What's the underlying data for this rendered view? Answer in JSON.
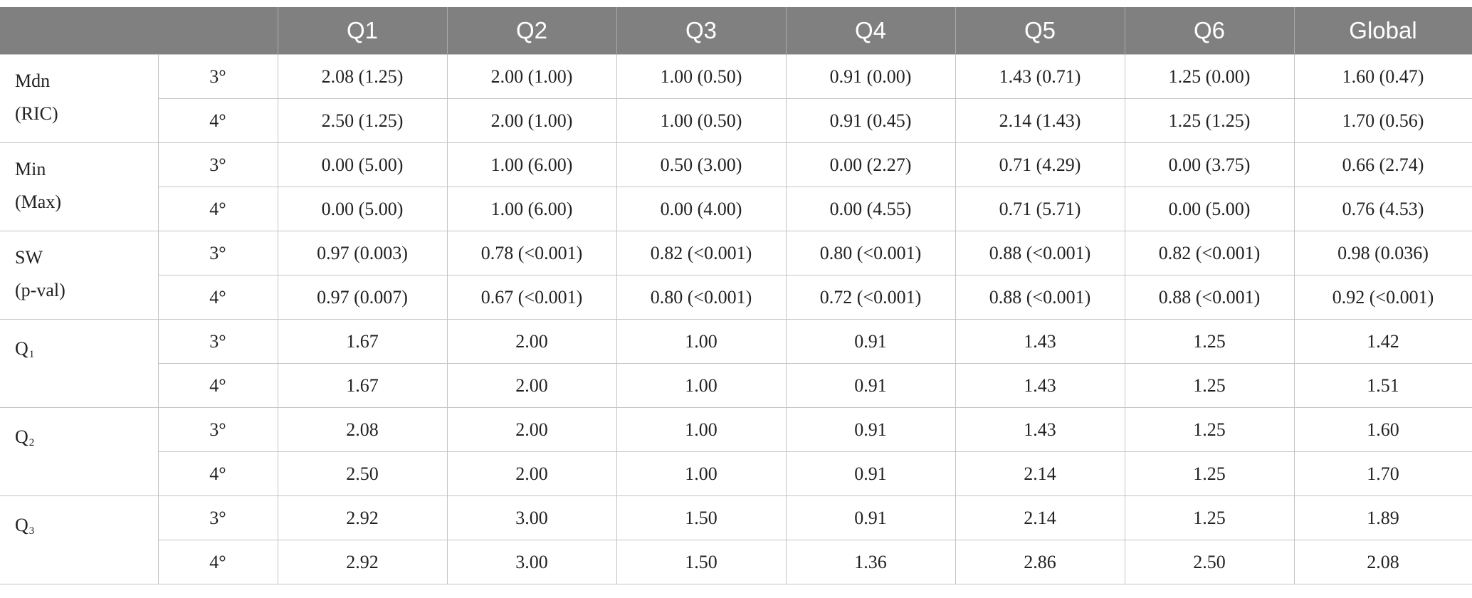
{
  "columns": {
    "empty": "",
    "q1": "Q1",
    "q2": "Q2",
    "q3": "Q3",
    "q4": "Q4",
    "q5": "Q5",
    "q6": "Q6",
    "global": "Global"
  },
  "groups": [
    {
      "label_main": "Mdn",
      "label_sub": "(RIC)",
      "rows": [
        {
          "grade": "3°",
          "values": [
            "2.08 (1.25)",
            "2.00 (1.00)",
            "1.00 (0.50)",
            "0.91 (0.00)",
            "1.43 (0.71)",
            "1.25 (0.00)",
            "1.60 (0.47)"
          ]
        },
        {
          "grade": "4°",
          "values": [
            "2.50 (1.25)",
            "2.00 (1.00)",
            "1.00 (0.50)",
            "0.91 (0.45)",
            "2.14 (1.43)",
            "1.25 (1.25)",
            "1.70 (0.56)"
          ]
        }
      ]
    },
    {
      "label_main": "Min",
      "label_sub": "(Max)",
      "rows": [
        {
          "grade": "3°",
          "values": [
            "0.00 (5.00)",
            "1.00 (6.00)",
            "0.50 (3.00)",
            "0.00 (2.27)",
            "0.71 (4.29)",
            "0.00 (3.75)",
            "0.66 (2.74)"
          ]
        },
        {
          "grade": "4°",
          "values": [
            "0.00 (5.00)",
            "1.00 (6.00)",
            "0.00 (4.00)",
            "0.00 (4.55)",
            "0.71 (5.71)",
            "0.00 (5.00)",
            "0.76 (4.53)"
          ]
        }
      ]
    },
    {
      "label_main": "SW",
      "label_sub": "(p-val)",
      "rows": [
        {
          "grade": "3°",
          "values": [
            "0.97 (0.003)",
            "0.78 (<0.001)",
            "0.82 (<0.001)",
            "0.80 (<0.001)",
            "0.88 (<0.001)",
            "0.82 (<0.001)",
            "0.98 (0.036)"
          ]
        },
        {
          "grade": "4°",
          "values": [
            "0.97 (0.007)",
            "0.67 (<0.001)",
            "0.80 (<0.001)",
            "0.72 (<0.001)",
            "0.88 (<0.001)",
            "0.88 (<0.001)",
            "0.92 (<0.001)"
          ]
        }
      ]
    },
    {
      "label_main": "Q",
      "label_subscript": "1",
      "rows": [
        {
          "grade": "3°",
          "values": [
            "1.67",
            "2.00",
            "1.00",
            "0.91",
            "1.43",
            "1.25",
            "1.42"
          ]
        },
        {
          "grade": "4°",
          "values": [
            "1.67",
            "2.00",
            "1.00",
            "0.91",
            "1.43",
            "1.25",
            "1.51"
          ]
        }
      ]
    },
    {
      "label_main": "Q",
      "label_subscript": "2",
      "rows": [
        {
          "grade": "3°",
          "values": [
            "2.08",
            "2.00",
            "1.00",
            "0.91",
            "1.43",
            "1.25",
            "1.60"
          ]
        },
        {
          "grade": "4°",
          "values": [
            "2.50",
            "2.00",
            "1.00",
            "0.91",
            "2.14",
            "1.25",
            "1.70"
          ]
        }
      ]
    },
    {
      "label_main": "Q",
      "label_subscript": "3",
      "rows": [
        {
          "grade": "3°",
          "values": [
            "2.92",
            "3.00",
            "1.50",
            "0.91",
            "2.14",
            "1.25",
            "1.89"
          ]
        },
        {
          "grade": "4°",
          "values": [
            "2.92",
            "3.00",
            "1.50",
            "1.36",
            "2.86",
            "2.50",
            "2.08"
          ]
        }
      ]
    }
  ],
  "colors": {
    "header_bg": "#808080",
    "header_text": "#ffffff",
    "grid": "#c4c4c4"
  }
}
